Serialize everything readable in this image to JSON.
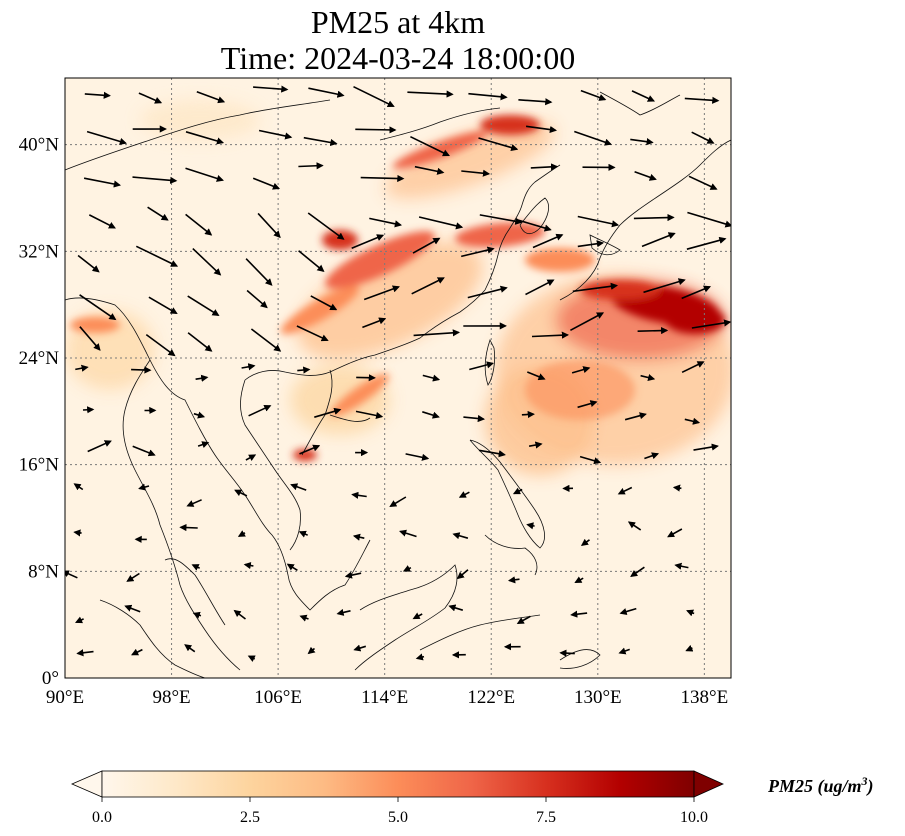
{
  "title": {
    "line1": "PM25 at 4km",
    "line2": "Time: 2024-03-24 18:00:00"
  },
  "map": {
    "lon_range": [
      90,
      140
    ],
    "lat_range": [
      0,
      45
    ],
    "lon_ticks": [
      {
        "value": 90,
        "label": "90°E"
      },
      {
        "value": 98,
        "label": "98°E"
      },
      {
        "value": 106,
        "label": "106°E"
      },
      {
        "value": 114,
        "label": "114°E"
      },
      {
        "value": 122,
        "label": "122°E"
      },
      {
        "value": 130,
        "label": "130°E"
      },
      {
        "value": 138,
        "label": "138°E"
      }
    ],
    "lat_ticks": [
      {
        "value": 0,
        "label": "0°"
      },
      {
        "value": 8,
        "label": "8°N"
      },
      {
        "value": 16,
        "label": "16°N"
      },
      {
        "value": 24,
        "label": "24°N"
      },
      {
        "value": 32,
        "label": "32°N"
      },
      {
        "value": 40,
        "label": "40°N"
      }
    ],
    "gridlines": true,
    "field": "PM25 concentration",
    "vectors": "wind arrows"
  },
  "colorbar": {
    "min": 0.0,
    "max": 10.0,
    "colormap": "OrRd",
    "colors": [
      "#fff7ec",
      "#fee8c8",
      "#fdd49e",
      "#fdbb84",
      "#fc8d59",
      "#ef6548",
      "#d7301f",
      "#b30000",
      "#7f0000"
    ],
    "ticks": [
      "0.0",
      "2.5",
      "5.0",
      "7.5",
      "10.0"
    ],
    "extend": "both",
    "label_main": "PM25 (ug/m",
    "label_sup": "3",
    "label_close": ")"
  }
}
